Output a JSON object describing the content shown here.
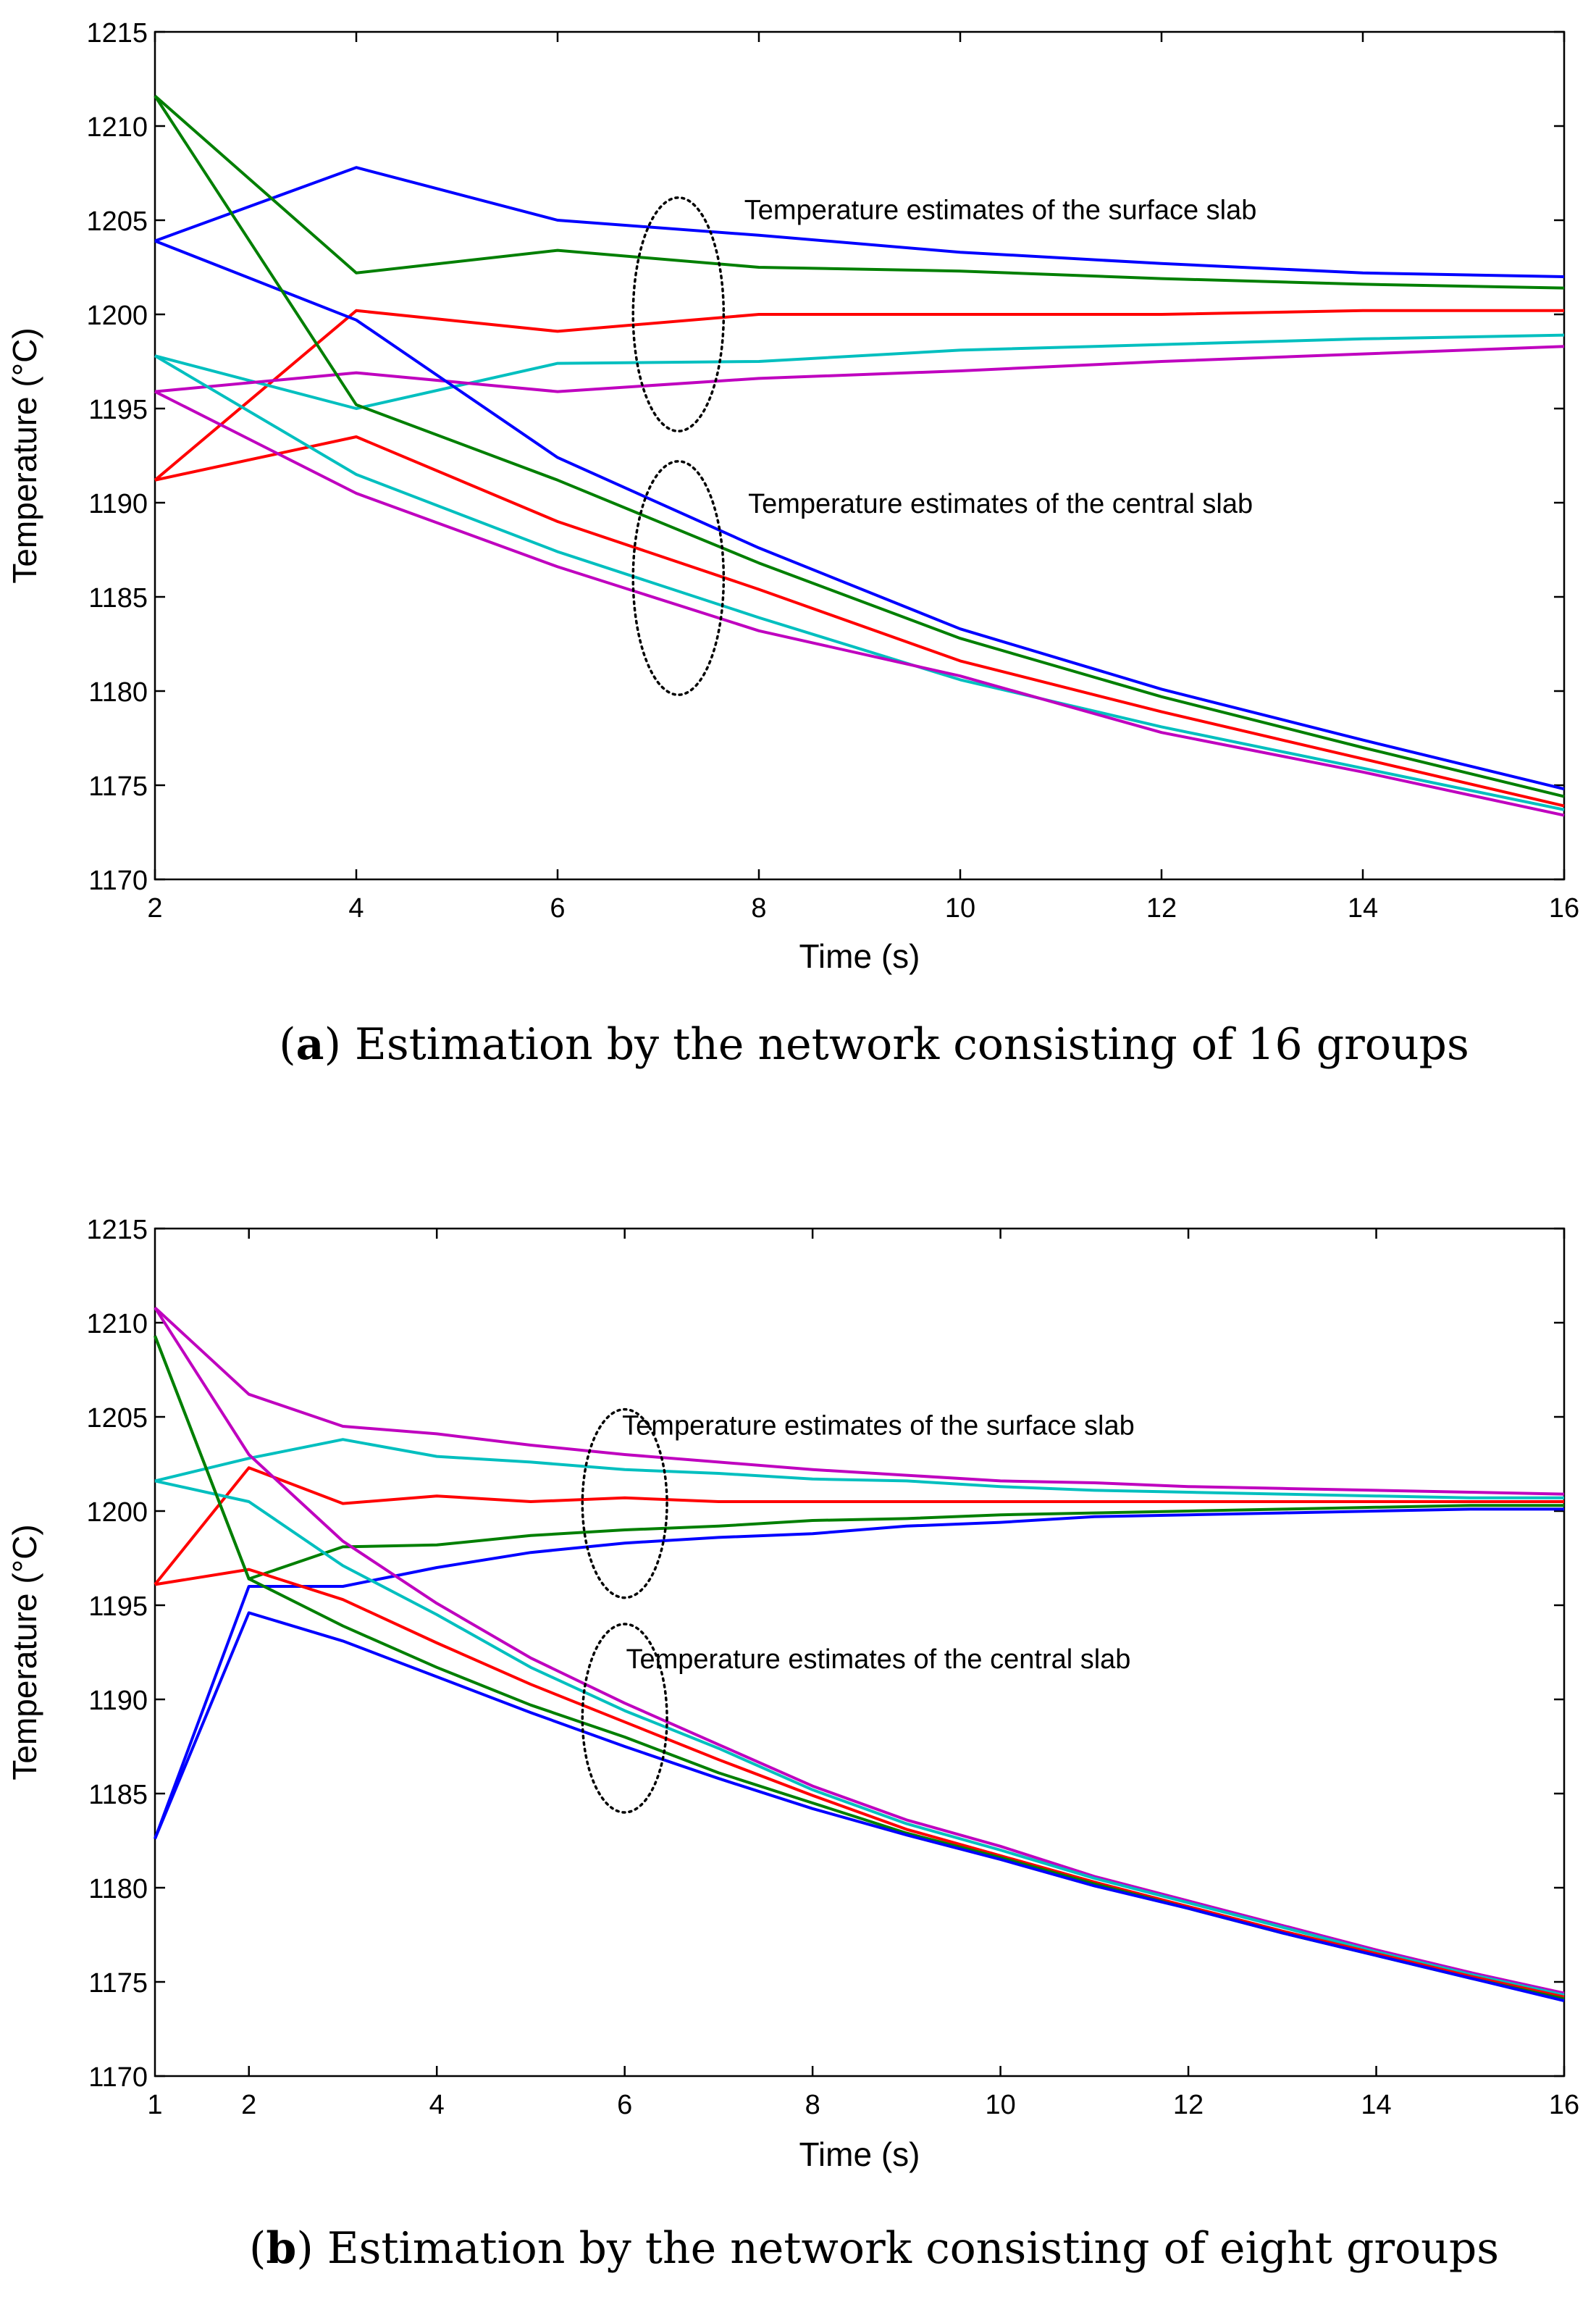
{
  "chart_data": [
    {
      "type": "line",
      "panel_label": "(a)",
      "caption_label": "a",
      "caption_text": "Estimation by the network consisting of 16 groups",
      "xlabel": "Time (s)",
      "ylabel": "Temperature (°C)",
      "xlim": [
        2,
        16
      ],
      "ylim": [
        1170,
        1215
      ],
      "xticks": [
        2,
        4,
        6,
        8,
        10,
        12,
        14,
        16
      ],
      "yticks": [
        1170,
        1175,
        1180,
        1185,
        1190,
        1195,
        1200,
        1205,
        1210,
        1215
      ],
      "grid": false,
      "annotations": [
        {
          "text": "Temperature estimates of the surface slab",
          "x": 10.4,
          "y": 1205.6
        },
        {
          "text": "Temperature estimates of the central slab",
          "x": 10.4,
          "y": 1190.0
        }
      ],
      "ellipses": [
        {
          "cx": 7.2,
          "cy": 1200.0,
          "rx": 0.45,
          "ry": 6.2
        },
        {
          "cx": 7.2,
          "cy": 1186.0,
          "rx": 0.45,
          "ry": 6.2
        }
      ],
      "series": [
        {
          "color": "#0000ff",
          "x": [
            2,
            4,
            6,
            8,
            10,
            12,
            14,
            16
          ],
          "y": [
            1203.9,
            1207.8,
            1205.0,
            1204.2,
            1203.3,
            1202.7,
            1202.2,
            1202.0
          ]
        },
        {
          "color": "#007f00",
          "x": [
            2,
            4,
            6,
            8,
            10,
            12,
            14,
            16
          ],
          "y": [
            1211.6,
            1202.2,
            1203.4,
            1202.5,
            1202.3,
            1201.9,
            1201.6,
            1201.4
          ]
        },
        {
          "color": "#ff0000",
          "x": [
            2,
            4,
            6,
            8,
            10,
            12,
            14,
            16
          ],
          "y": [
            1191.2,
            1200.2,
            1199.1,
            1200.0,
            1200.0,
            1200.0,
            1200.2,
            1200.2
          ]
        },
        {
          "color": "#00bfbf",
          "x": [
            2,
            4,
            6,
            8,
            10,
            12,
            14,
            16
          ],
          "y": [
            1197.8,
            1195.0,
            1197.4,
            1197.5,
            1198.1,
            1198.4,
            1198.7,
            1198.9
          ]
        },
        {
          "color": "#bf00bf",
          "x": [
            2,
            4,
            6,
            8,
            10,
            12,
            14,
            16
          ],
          "y": [
            1195.9,
            1196.9,
            1195.9,
            1196.6,
            1197.0,
            1197.5,
            1197.9,
            1198.3
          ]
        },
        {
          "color": "#0000ff",
          "x": [
            2,
            4,
            6,
            8,
            10,
            12,
            14,
            16
          ],
          "y": [
            1203.9,
            1199.7,
            1192.4,
            1187.6,
            1183.3,
            1180.1,
            1177.4,
            1174.8
          ]
        },
        {
          "color": "#007f00",
          "x": [
            2,
            4,
            6,
            8,
            10,
            12,
            14,
            16
          ],
          "y": [
            1211.6,
            1195.2,
            1191.2,
            1186.8,
            1182.8,
            1179.7,
            1177.0,
            1174.4
          ]
        },
        {
          "color": "#ff0000",
          "x": [
            2,
            4,
            6,
            8,
            10,
            12,
            14,
            16
          ],
          "y": [
            1191.2,
            1193.5,
            1189.0,
            1185.4,
            1181.6,
            1178.9,
            1176.4,
            1173.9
          ]
        },
        {
          "color": "#00bfbf",
          "x": [
            2,
            4,
            6,
            8,
            10,
            12,
            14,
            16
          ],
          "y": [
            1197.8,
            1191.5,
            1187.4,
            1183.9,
            1180.6,
            1178.1,
            1175.9,
            1173.7
          ]
        },
        {
          "color": "#bf00bf",
          "x": [
            2,
            4,
            6,
            8,
            10,
            12,
            14,
            16
          ],
          "y": [
            1195.9,
            1190.5,
            1186.6,
            1183.2,
            1180.8,
            1177.8,
            1175.7,
            1173.4
          ]
        }
      ]
    },
    {
      "type": "line",
      "panel_label": "(b)",
      "caption_label": "b",
      "caption_text": "Estimation by the network consisting of eight groups",
      "xlabel": "Time (s)",
      "ylabel": "Temperature (°C)",
      "xlim": [
        1,
        16
      ],
      "ylim": [
        1170,
        1215
      ],
      "xticks": [
        2,
        4,
        6,
        8,
        10,
        12,
        14,
        16
      ],
      "yticks": [
        1170,
        1175,
        1180,
        1185,
        1190,
        1195,
        1200,
        1205,
        1210,
        1215
      ],
      "grid": false,
      "annotations": [
        {
          "text": "Temperature estimates of the surface slab",
          "x": 8.7,
          "y": 1204.6
        },
        {
          "text": "Temperature estimates of the central slab",
          "x": 8.7,
          "y": 1192.2
        }
      ],
      "ellipses": [
        {
          "cx": 6.0,
          "cy": 1200.4,
          "rx": 0.45,
          "ry": 5.0
        },
        {
          "cx": 6.0,
          "cy": 1189.0,
          "rx": 0.45,
          "ry": 5.0
        }
      ],
      "series": [
        {
          "color": "#bf00bf",
          "x": [
            1,
            2,
            3,
            4,
            5,
            6,
            7,
            8,
            9,
            10,
            11,
            12,
            13,
            14,
            15,
            16
          ],
          "y": [
            1210.8,
            1206.2,
            1204.5,
            1204.1,
            1203.5,
            1203.0,
            1202.6,
            1202.2,
            1201.9,
            1201.6,
            1201.5,
            1201.3,
            1201.2,
            1201.1,
            1201.0,
            1200.9
          ]
        },
        {
          "color": "#00bfbf",
          "x": [
            1,
            2,
            3,
            4,
            5,
            6,
            7,
            8,
            9,
            10,
            11,
            12,
            13,
            14,
            15,
            16
          ],
          "y": [
            1201.6,
            1202.8,
            1203.8,
            1202.9,
            1202.6,
            1202.2,
            1202.0,
            1201.7,
            1201.6,
            1201.3,
            1201.1,
            1201.0,
            1200.9,
            1200.8,
            1200.7,
            1200.7
          ]
        },
        {
          "color": "#ff0000",
          "x": [
            1,
            2,
            3,
            4,
            5,
            6,
            7,
            8,
            9,
            10,
            11,
            12,
            13,
            14,
            15,
            16
          ],
          "y": [
            1196.1,
            1202.3,
            1200.4,
            1200.8,
            1200.5,
            1200.7,
            1200.5,
            1200.5,
            1200.5,
            1200.5,
            1200.5,
            1200.5,
            1200.5,
            1200.5,
            1200.5,
            1200.5
          ]
        },
        {
          "color": "#007f00",
          "x": [
            1,
            2,
            3,
            4,
            5,
            6,
            7,
            8,
            9,
            10,
            11,
            12,
            13,
            14,
            15,
            16
          ],
          "y": [
            1209.3,
            1196.4,
            1198.1,
            1198.2,
            1198.7,
            1199.0,
            1199.2,
            1199.5,
            1199.6,
            1199.8,
            1199.9,
            1200.0,
            1200.1,
            1200.2,
            1200.3,
            1200.3
          ]
        },
        {
          "color": "#0000ff",
          "x": [
            1,
            2,
            3,
            4,
            5,
            6,
            7,
            8,
            9,
            10,
            11,
            12,
            13,
            14,
            15,
            16
          ],
          "y": [
            1182.6,
            1196.0,
            1196.0,
            1197.0,
            1197.8,
            1198.3,
            1198.6,
            1198.8,
            1199.2,
            1199.4,
            1199.7,
            1199.8,
            1199.9,
            1200.0,
            1200.1,
            1200.1
          ]
        },
        {
          "color": "#bf00bf",
          "x": [
            1,
            2,
            3,
            4,
            5,
            6,
            7,
            8,
            9,
            10,
            11,
            12,
            13,
            14,
            15,
            16
          ],
          "y": [
            1210.8,
            1203.0,
            1198.4,
            1195.1,
            1192.2,
            1189.8,
            1187.6,
            1185.4,
            1183.6,
            1182.2,
            1180.6,
            1179.3,
            1178.0,
            1176.7,
            1175.5,
            1174.4
          ]
        },
        {
          "color": "#00bfbf",
          "x": [
            1,
            2,
            3,
            4,
            5,
            6,
            7,
            8,
            9,
            10,
            11,
            12,
            13,
            14,
            15,
            16
          ],
          "y": [
            1201.6,
            1200.5,
            1197.1,
            1194.5,
            1191.7,
            1189.4,
            1187.4,
            1185.2,
            1183.4,
            1182.0,
            1180.5,
            1179.2,
            1177.9,
            1176.6,
            1175.4,
            1174.3
          ]
        },
        {
          "color": "#ff0000",
          "x": [
            1,
            2,
            3,
            4,
            5,
            6,
            7,
            8,
            9,
            10,
            11,
            12,
            13,
            14,
            15,
            16
          ],
          "y": [
            1196.1,
            1196.9,
            1195.3,
            1193.0,
            1190.8,
            1188.8,
            1186.8,
            1184.9,
            1183.1,
            1181.7,
            1180.3,
            1179.0,
            1177.7,
            1176.5,
            1175.3,
            1174.2
          ]
        },
        {
          "color": "#007f00",
          "x": [
            1,
            2,
            3,
            4,
            5,
            6,
            7,
            8,
            9,
            10,
            11,
            12,
            13,
            14,
            15,
            16
          ],
          "y": [
            1209.3,
            1196.4,
            1193.9,
            1191.7,
            1189.7,
            1188.0,
            1186.1,
            1184.5,
            1182.9,
            1181.6,
            1180.2,
            1178.9,
            1177.6,
            1176.4,
            1175.2,
            1174.1
          ]
        },
        {
          "color": "#0000ff",
          "x": [
            1,
            2,
            3,
            4,
            5,
            6,
            7,
            8,
            9,
            10,
            11,
            12,
            13,
            14,
            15,
            16
          ],
          "y": [
            1182.6,
            1194.6,
            1193.1,
            1191.2,
            1189.3,
            1187.5,
            1185.8,
            1184.2,
            1182.8,
            1181.5,
            1180.1,
            1178.9,
            1177.6,
            1176.4,
            1175.2,
            1174.0
          ]
        }
      ]
    }
  ]
}
